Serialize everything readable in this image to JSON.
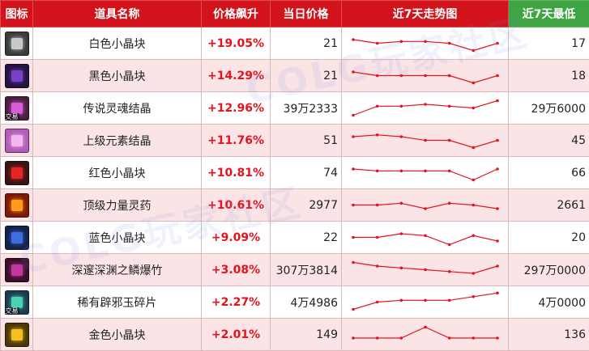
{
  "headers": {
    "icon": "图标",
    "name": "道具名称",
    "change": "价格飙升",
    "price": "当日价格",
    "trend": "近7天走势图",
    "low": "近7天最低"
  },
  "colors": {
    "header_red": "#d2131b",
    "header_green": "#3fa442",
    "row_pink": "#fbe4e6",
    "change_red": "#e3141d",
    "trend_line": "#e3141d"
  },
  "watermark": "COLG玩家社区",
  "rows": [
    {
      "icon": "white-crystal-icon",
      "icon_color": "#c9c9c9",
      "icon_bg": "#3a3a3a",
      "name": "白色小晶块",
      "change": "+19.05%",
      "price": "21",
      "low": "17",
      "trend": [
        4,
        3,
        3.5,
        3.5,
        3,
        1,
        3
      ]
    },
    {
      "icon": "black-crystal-icon",
      "icon_color": "#7a3fc8",
      "icon_bg": "#241440",
      "name": "黑色小晶块",
      "change": "+14.29%",
      "price": "21",
      "low": "18",
      "trend": [
        4,
        3,
        3,
        3,
        3,
        1,
        3
      ]
    },
    {
      "icon": "legend-soul-crystal-icon",
      "icon_color": "#d85bd8",
      "icon_bg": "#4b1f3e",
      "tag": "交易",
      "name": "传说灵魂结晶",
      "change": "+12.96%",
      "price": "39万2333",
      "low": "29万6000",
      "trend": [
        1,
        3.5,
        3.5,
        4,
        3.5,
        3,
        5
      ]
    },
    {
      "icon": "elemental-crystal-icon",
      "icon_color": "#f3b7ef",
      "icon_bg": "#b05db5",
      "name": "上级元素结晶",
      "change": "+11.76%",
      "price": "51",
      "low": "45",
      "trend": [
        4,
        4.5,
        4,
        3,
        3,
        1,
        3
      ]
    },
    {
      "icon": "red-crystal-icon",
      "icon_color": "#e62525",
      "icon_bg": "#3a1515",
      "name": "红色小晶块",
      "change": "+10.81%",
      "price": "74",
      "low": "66",
      "trend": [
        4,
        3.5,
        3.5,
        3.5,
        3.5,
        1,
        4
      ]
    },
    {
      "icon": "power-potion-icon",
      "icon_color": "#ff9a1a",
      "icon_bg": "#7a1a08",
      "name": "顶级力量灵药",
      "change": "+10.61%",
      "price": "2977",
      "low": "2661",
      "trend": [
        3,
        3,
        3.5,
        2,
        3.5,
        3,
        2
      ]
    },
    {
      "icon": "blue-crystal-icon",
      "icon_color": "#3b6fe0",
      "icon_bg": "#16224a",
      "name": "蓝色小晶块",
      "change": "+9.09%",
      "price": "22",
      "low": "20",
      "trend": [
        3,
        3,
        4,
        3.5,
        1,
        3.5,
        2
      ]
    },
    {
      "icon": "abyss-firecracker-icon",
      "icon_color": "#c0389d",
      "icon_bg": "#3a0f2a",
      "name": "深邃深渊之鳞爆竹",
      "change": "+3.08%",
      "price": "307万3814",
      "low": "297万0000",
      "trend": [
        5,
        4,
        3.5,
        3,
        2.5,
        2,
        4
      ]
    },
    {
      "icon": "jade-shard-icon",
      "icon_color": "#4bd1b3",
      "icon_bg": "#1d3a52",
      "tag": "交易",
      "name": "稀有辟邪玉碎片",
      "change": "+2.27%",
      "price": "4万4986",
      "low": "4万0000",
      "trend": [
        1,
        3,
        3.5,
        3.5,
        3.5,
        4.5,
        5.5
      ]
    },
    {
      "icon": "gold-crystal-icon",
      "icon_color": "#f3c21a",
      "icon_bg": "#4a3608",
      "name": "金色小晶块",
      "change": "+2.01%",
      "price": "149",
      "low": "136",
      "trend": [
        2,
        2,
        2,
        5,
        2,
        2,
        2
      ]
    }
  ]
}
